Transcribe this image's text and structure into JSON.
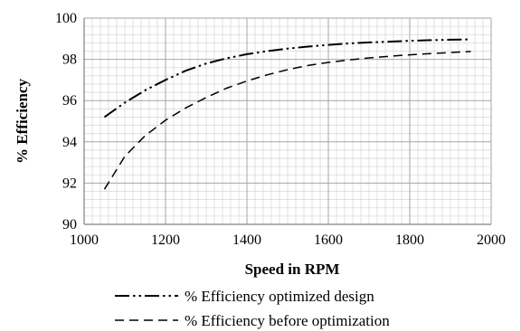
{
  "chart_data": {
    "type": "line",
    "xlabel": "Speed in RPM",
    "ylabel": "% Efficiency",
    "xlim": [
      1000,
      2000
    ],
    "ylim": [
      90,
      100
    ],
    "x_ticks": [
      "1000",
      "1200",
      "1400",
      "1600",
      "1800",
      "2000"
    ],
    "y_ticks": [
      "90",
      "92",
      "94",
      "96",
      "98",
      "100"
    ],
    "grid": true,
    "legend_position": "bottom",
    "series": [
      {
        "name": "% Efficiency optimized design",
        "dash": "dash-dot-dot",
        "x": [
          1050,
          1100,
          1150,
          1200,
          1250,
          1300,
          1350,
          1400,
          1450,
          1500,
          1550,
          1600,
          1650,
          1700,
          1750,
          1800,
          1850,
          1900,
          1950
        ],
        "y": [
          95.2,
          95.9,
          96.5,
          97.0,
          97.45,
          97.8,
          98.05,
          98.25,
          98.4,
          98.52,
          98.62,
          98.7,
          98.77,
          98.82,
          98.86,
          98.9,
          98.93,
          98.95,
          98.97
        ]
      },
      {
        "name": "% Efficiency before optimization",
        "dash": "dash",
        "x": [
          1050,
          1100,
          1150,
          1200,
          1250,
          1300,
          1350,
          1400,
          1450,
          1500,
          1550,
          1600,
          1650,
          1700,
          1750,
          1800,
          1850,
          1900,
          1950
        ],
        "y": [
          91.7,
          93.3,
          94.3,
          95.05,
          95.65,
          96.15,
          96.6,
          96.95,
          97.25,
          97.5,
          97.7,
          97.85,
          97.97,
          98.07,
          98.15,
          98.22,
          98.28,
          98.33,
          98.38
        ]
      }
    ]
  }
}
